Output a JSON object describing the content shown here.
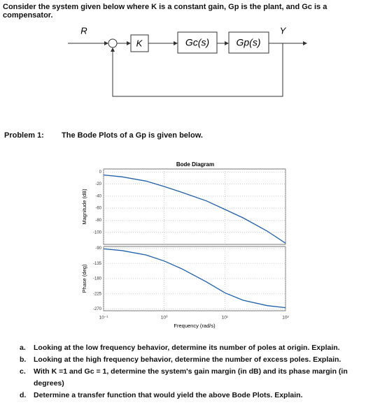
{
  "header": {
    "text": "Consider the system given below where K is a constant gain, Gp is the plant, and Gc is a compensator."
  },
  "diagram": {
    "input": "R",
    "gain": "K",
    "compensator": "Gc(s)",
    "plant": "Gp(s)",
    "output": "Y"
  },
  "problem": {
    "label": "Problem 1:",
    "text": "The Bode Plots of a Gp is given below."
  },
  "bode": {
    "title": "Bode Diagram",
    "xlabel": "Frequency (rad/s)",
    "log_x": true,
    "grid": true,
    "xlim": [
      0.1,
      100
    ],
    "xticks": [
      {
        "value": 0.1,
        "label": "10⁻¹"
      },
      {
        "value": 1,
        "label": "10⁰"
      },
      {
        "value": 10,
        "label": "10¹"
      },
      {
        "value": 100,
        "label": "10²"
      }
    ],
    "x": [
      0.1,
      0.2,
      0.5,
      1,
      2,
      5,
      10,
      20,
      50,
      100
    ],
    "magnitude": {
      "ylabel": "Magnitude (dB)",
      "ylim": [
        -120,
        5
      ],
      "yticks": [
        0,
        -20,
        -40,
        -60,
        -80,
        -100
      ],
      "color": "#1f5fa8",
      "values": [
        -5,
        -8,
        -15,
        -24,
        -34,
        -48,
        -62,
        -76,
        -98,
        -118
      ]
    },
    "phase": {
      "ylabel": "Phase (deg)",
      "ylim": [
        -275,
        -85
      ],
      "yticks": [
        -90,
        -135,
        -180,
        -225,
        -270
      ],
      "color": "#1f5fa8",
      "values": [
        -92,
        -97,
        -110,
        -128,
        -152,
        -190,
        -222,
        -244,
        -260,
        -266
      ]
    }
  },
  "questions": [
    {
      "label": "a.",
      "text": "Looking at the low frequency behavior, determine its number of poles at origin. Explain."
    },
    {
      "label": "b.",
      "text": "Looking at the high frequency behavior, determine the number of excess poles. Explain."
    },
    {
      "label": "c.",
      "text": "With K =1 and Gc = 1, determine the system's gain margin (in dB) and its phase margin (in degrees)"
    },
    {
      "label": "d.",
      "text": "Determine a transfer function that would yield the above Bode Plots. Explain."
    }
  ]
}
